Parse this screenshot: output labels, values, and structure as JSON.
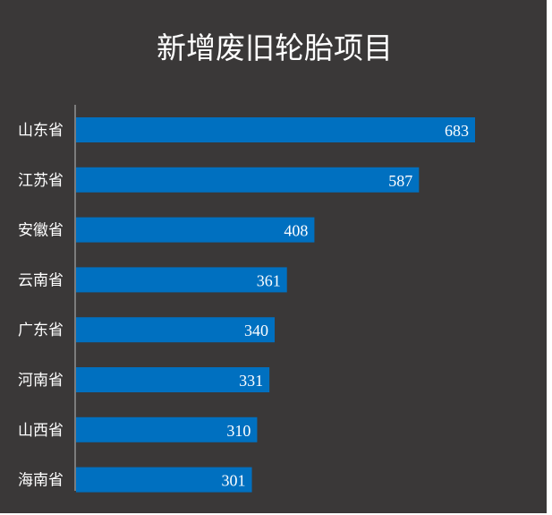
{
  "chart_data": {
    "type": "bar",
    "orientation": "horizontal",
    "title": "新增废旧轮胎项目",
    "xlabel": "",
    "ylabel": "",
    "categories": [
      "山东省",
      "江苏省",
      "安徽省",
      "云南省",
      "广东省",
      "河南省",
      "山西省",
      "海南省"
    ],
    "values": [
      683,
      587,
      408,
      361,
      340,
      331,
      310,
      301
    ],
    "xlim": [
      0,
      700
    ],
    "grid": false,
    "legend": "none",
    "data_labels": "inside-end"
  },
  "colors": {
    "background": "#3a3838",
    "bar": "#0070c0",
    "text": "#ffffff",
    "axis": "#bfbfbf"
  }
}
